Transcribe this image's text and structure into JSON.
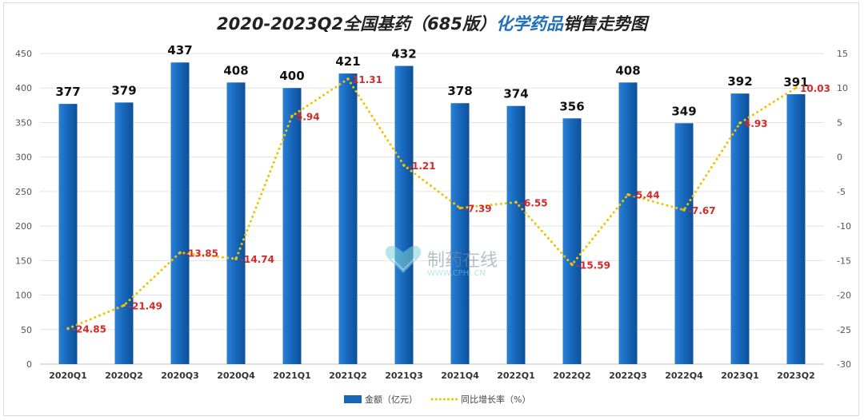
{
  "chart_data": {
    "type": "bar",
    "title_prefix": "2020-2023Q2全国基药（685版）",
    "title_highlight": "化学药品",
    "title_suffix": "销售走势图",
    "categories": [
      "2020Q1",
      "2020Q2",
      "2020Q3",
      "2020Q4",
      "2021Q1",
      "2021Q2",
      "2021Q3",
      "2021Q4",
      "2022Q1",
      "2022Q2",
      "2022Q3",
      "2022Q4",
      "2023Q1",
      "2023Q2"
    ],
    "series": [
      {
        "name": "金额（亿元）",
        "type": "bar",
        "axis": "left",
        "color": "#1565b8",
        "values": [
          377,
          379,
          437,
          408,
          400,
          421,
          432,
          378,
          374,
          356,
          408,
          349,
          392,
          391
        ]
      },
      {
        "name": "同比增长率（%）",
        "type": "line",
        "axis": "right",
        "color": "#f2c200",
        "values": [
          -24.85,
          -21.49,
          -13.85,
          -14.74,
          5.94,
          11.31,
          -1.21,
          -7.39,
          -6.55,
          -15.59,
          -5.44,
          -7.67,
          4.93,
          10.03
        ]
      }
    ],
    "bar_labels": [
      "377",
      "379",
      "437",
      "408",
      "400",
      "421",
      "432",
      "378",
      "374",
      "356",
      "408",
      "349",
      "392",
      "391"
    ],
    "line_labels": [
      "-24.85",
      "-21.49",
      "-13.85",
      "-14.74",
      "5.94",
      "11.31",
      "-1.21",
      "-7.39",
      "-6.55",
      "-15.59",
      "-5.44",
      "-7.67",
      "4.93",
      "10.03"
    ],
    "y_left": {
      "min": 0,
      "max": 450,
      "step": 50,
      "ticks": [
        "0",
        "50",
        "100",
        "150",
        "200",
        "250",
        "300",
        "350",
        "400",
        "450"
      ]
    },
    "y_right": {
      "min": -30,
      "max": 15,
      "step": 5,
      "ticks": [
        "-30",
        "-25",
        "-20",
        "-15",
        "-10",
        "-5",
        "0",
        "5",
        "10",
        "15"
      ]
    },
    "grid": true,
    "legend_position": "bottom"
  },
  "watermark": {
    "text": "制药在线",
    "subtext": "WWW.CPHI.CN"
  },
  "colors": {
    "bar": "#1565b8",
    "line": "#f2c200",
    "line_label": "#d42a2a",
    "bar_label": "#111111"
  }
}
